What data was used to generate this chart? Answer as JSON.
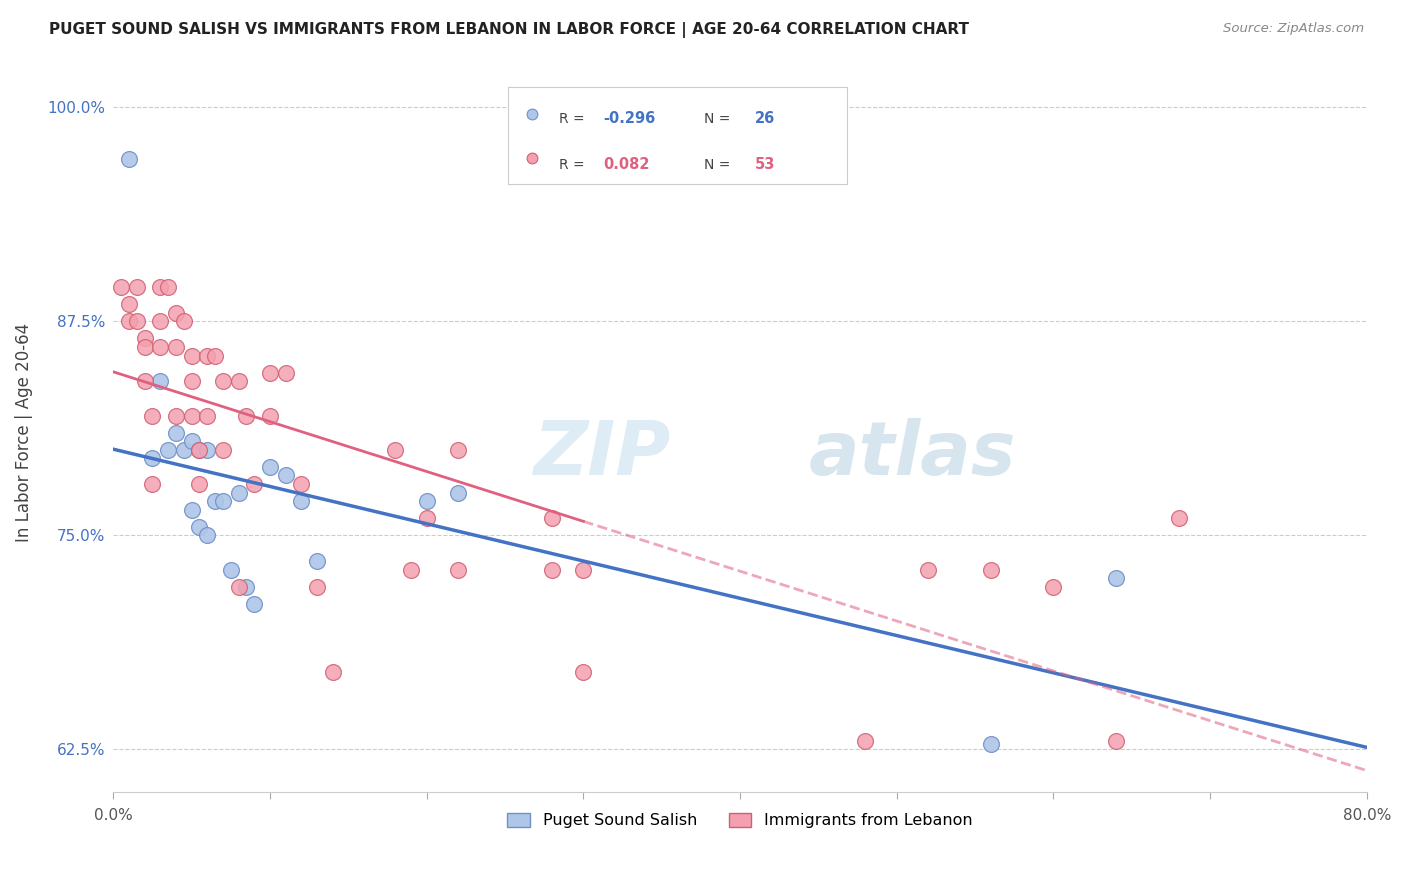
{
  "title": "PUGET SOUND SALISH VS IMMIGRANTS FROM LEBANON IN LABOR FORCE | AGE 20-64 CORRELATION CHART",
  "source": "Source: ZipAtlas.com",
  "ylabel": "In Labor Force | Age 20-64",
  "xlim": [
    0.0,
    0.8
  ],
  "ylim": [
    0.6,
    1.02
  ],
  "color_blue": "#aec6e8",
  "color_pink": "#f4a0b0",
  "color_blue_edge": "#7090c8",
  "color_pink_edge": "#d06070",
  "color_blue_line": "#4472c4",
  "color_pink_line": "#e06080",
  "r1": -0.296,
  "n1": 26,
  "r2": 0.082,
  "n2": 53,
  "legend1_label": "Puget Sound Salish",
  "legend2_label": "Immigrants from Lebanon",
  "watermark_zip": "ZIP",
  "watermark_atlas": "atlas",
  "blue_points_x": [
    0.01,
    0.025,
    0.03,
    0.035,
    0.04,
    0.045,
    0.05,
    0.05,
    0.055,
    0.055,
    0.06,
    0.06,
    0.065,
    0.07,
    0.075,
    0.08,
    0.085,
    0.09,
    0.1,
    0.11,
    0.12,
    0.13,
    0.2,
    0.22,
    0.56,
    0.64
  ],
  "blue_points_y": [
    0.97,
    0.795,
    0.84,
    0.8,
    0.81,
    0.8,
    0.805,
    0.765,
    0.755,
    0.8,
    0.8,
    0.75,
    0.77,
    0.77,
    0.73,
    0.775,
    0.72,
    0.71,
    0.79,
    0.785,
    0.77,
    0.735,
    0.77,
    0.775,
    0.628,
    0.725
  ],
  "pink_points_x": [
    0.005,
    0.01,
    0.01,
    0.015,
    0.015,
    0.02,
    0.02,
    0.02,
    0.025,
    0.025,
    0.03,
    0.03,
    0.03,
    0.035,
    0.04,
    0.04,
    0.04,
    0.045,
    0.05,
    0.05,
    0.05,
    0.055,
    0.055,
    0.06,
    0.06,
    0.065,
    0.07,
    0.07,
    0.08,
    0.08,
    0.085,
    0.09,
    0.1,
    0.1,
    0.11,
    0.12,
    0.13,
    0.14,
    0.18,
    0.19,
    0.2,
    0.22,
    0.22,
    0.28,
    0.28,
    0.3,
    0.3,
    0.48,
    0.52,
    0.56,
    0.6,
    0.64,
    0.68
  ],
  "pink_points_y": [
    0.895,
    0.885,
    0.875,
    0.895,
    0.875,
    0.865,
    0.86,
    0.84,
    0.82,
    0.78,
    0.895,
    0.875,
    0.86,
    0.895,
    0.88,
    0.86,
    0.82,
    0.875,
    0.855,
    0.84,
    0.82,
    0.8,
    0.78,
    0.855,
    0.82,
    0.855,
    0.84,
    0.8,
    0.84,
    0.72,
    0.82,
    0.78,
    0.845,
    0.82,
    0.845,
    0.78,
    0.72,
    0.67,
    0.8,
    0.73,
    0.76,
    0.8,
    0.73,
    0.76,
    0.73,
    0.73,
    0.67,
    0.63,
    0.73,
    0.73,
    0.72,
    0.63,
    0.76
  ]
}
